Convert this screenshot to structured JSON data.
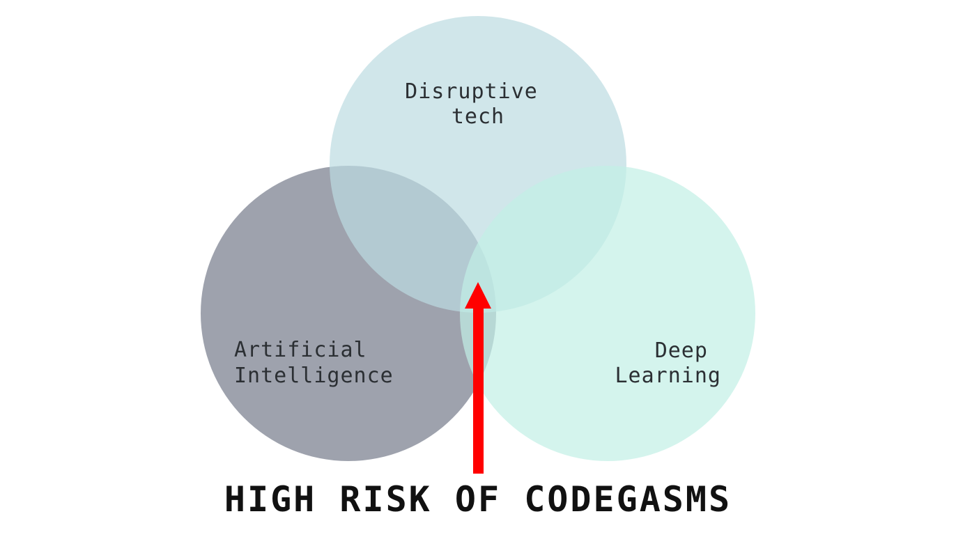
{
  "diagram": {
    "circles": [
      {
        "id": "disruptive-tech",
        "label_lines": [
          "Disruptive",
          "tech"
        ],
        "color": "#bcdbe1"
      },
      {
        "id": "artificial-intelligence",
        "label_lines": [
          "Artificial",
          "Intelligence"
        ],
        "color": "#868b98"
      },
      {
        "id": "deep-learning",
        "label_lines": [
          "Deep",
          "Learning"
        ],
        "color": "#c2f0e6"
      }
    ],
    "arrow_color": "#ff0000",
    "caption": "HIGH RISK OF CODEGASMS"
  }
}
